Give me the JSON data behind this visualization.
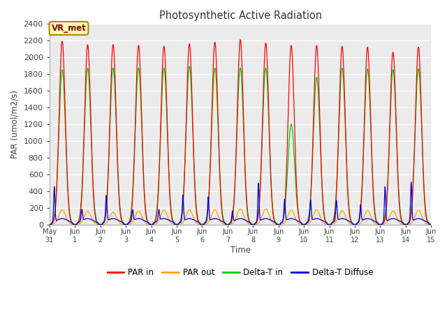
{
  "title": "Photosynthetic Active Radiation",
  "ylabel": "PAR (umol/m2/s)",
  "xlabel": "Time",
  "annotation": "VR_met",
  "ylim": [
    0,
    2400
  ],
  "plot_bg_color": "#ebebeb",
  "fig_bg_color": "#ffffff",
  "legend_labels": [
    "PAR in",
    "PAR out",
    "Delta-T in",
    "Delta-T Diffuse"
  ],
  "legend_colors": [
    "#ff0000",
    "#ffa500",
    "#00cc00",
    "#0000dd"
  ],
  "x_tick_labels": [
    "May\n31",
    "Jun\n1",
    "Jun\n2",
    "Jun\n3",
    "Jun\n4",
    "Jun\n5",
    "Jun\n6",
    "Jun\n7",
    "Jun\n8",
    "Jun\n9",
    "Jun\n10",
    "Jun\n11",
    "Jun\n12",
    "Jun\n13",
    "Jun\n14",
    "Jun\n15"
  ],
  "num_days": 15,
  "par_in_peaks": [
    2190,
    2150,
    2150,
    2140,
    2130,
    2160,
    2180,
    2210,
    2170,
    2140,
    2140,
    2130,
    2120,
    2060,
    2120
  ],
  "par_out_peaks": [
    175,
    160,
    145,
    160,
    170,
    175,
    175,
    185,
    185,
    170,
    175,
    165,
    165,
    160,
    170
  ],
  "delta_t_in_peaks": [
    1850,
    1870,
    1870,
    1870,
    1870,
    1890,
    1870,
    1870,
    1870,
    1200,
    1760,
    1870,
    1860,
    1850,
    1860
  ],
  "delta_t_diffuse_peaks": [
    420,
    135,
    310,
    130,
    130,
    310,
    290,
    130,
    460,
    260,
    250,
    240,
    200,
    420,
    470
  ],
  "par_in_sigma": 0.12,
  "par_out_sigma": 0.13,
  "delta_t_sigma": 0.13,
  "diffuse_spike_sigma": 0.025,
  "diffuse_base_amp": 70,
  "diffuse_base_sigma": 0.25
}
